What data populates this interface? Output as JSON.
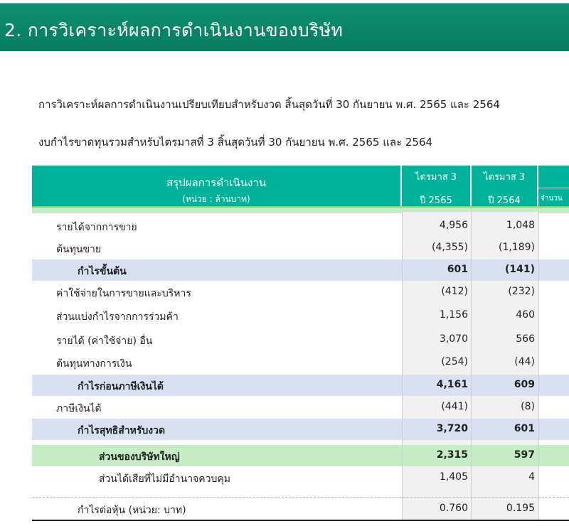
{
  "header": {
    "title": "2.  การวิเคราะห์ผลการดำเนินงานของบริษัท"
  },
  "intro": {
    "line1": "การวิเคราะห์ผลการดำเนินงานเปรียบเทียบสำหรับงวด สิ้นสุดวันที่ 30 กันยายน พ.ศ. 2565 และ 2564",
    "line2": "งบกำไรขาดทุนรวมสำหรับไตรมาสที่ 3 สิ้นสุดวันที่ 30 กันยายน พ.ศ. 2565 และ 2564"
  },
  "table": {
    "header": {
      "title": "สรุปผลการดำเนินงาน",
      "unit": "(หน่วย : ล้านบาท)",
      "col1_top": "ไตรมาส 3",
      "col1_bottom": "ปี 2565",
      "col2_top": "ไตรมาส 3",
      "col2_bottom": "ปี 2564",
      "col3_bottom": "จำนวน"
    },
    "rows": [
      {
        "label": "รายได้จากการขาย",
        "q3_2565": "4,956",
        "q3_2564": "1,048"
      },
      {
        "label": "ต้นทุนขาย",
        "q3_2565": "(4,355)",
        "q3_2564": "(1,189)"
      },
      {
        "label": "กำไรขั้นต้น",
        "q3_2565": "601",
        "q3_2564": "(141)"
      },
      {
        "label": "ค่าใช้จ่ายในการขายและบริหาร",
        "q3_2565": "(412)",
        "q3_2564": "(232)"
      },
      {
        "label": "ส่วนแบ่งกำไรจากการร่วมค้า",
        "q3_2565": "1,156",
        "q3_2564": "460"
      },
      {
        "label": "รายได้ (ค่าใช้จ่าย) อื่น",
        "q3_2565": "3,070",
        "q3_2564": "566"
      },
      {
        "label": "ต้นทุนทางการเงิน",
        "q3_2565": "(254)",
        "q3_2564": "(44)"
      },
      {
        "label": "กำไรก่อนภาษีเงินได้",
        "q3_2565": "4,161",
        "q3_2564": "609"
      },
      {
        "label": "ภาษีเงินได้",
        "q3_2565": "(441)",
        "q3_2564": "(8)"
      },
      {
        "label": "กำไรสุทธิสำหรับงวด",
        "q3_2565": "3,720",
        "q3_2564": "601"
      },
      {
        "label": "ส่วนของบริษัทใหญ่",
        "q3_2565": "2,315",
        "q3_2564": "597"
      },
      {
        "label": "ส่วนได้เสียที่ไม่มีอำนาจควบคุม",
        "q3_2565": "1,405",
        "q3_2564": "4"
      },
      {
        "label": "กำไรต่อหุ้น (หน่วย: บาท)",
        "q3_2565": "0.760",
        "q3_2564": "0.195"
      }
    ]
  },
  "colors": {
    "banner": "#0a8468",
    "table_header": "#00b39a",
    "subtotal_band": "#d8e0f2",
    "highlight_band": "#c6ecc6"
  }
}
